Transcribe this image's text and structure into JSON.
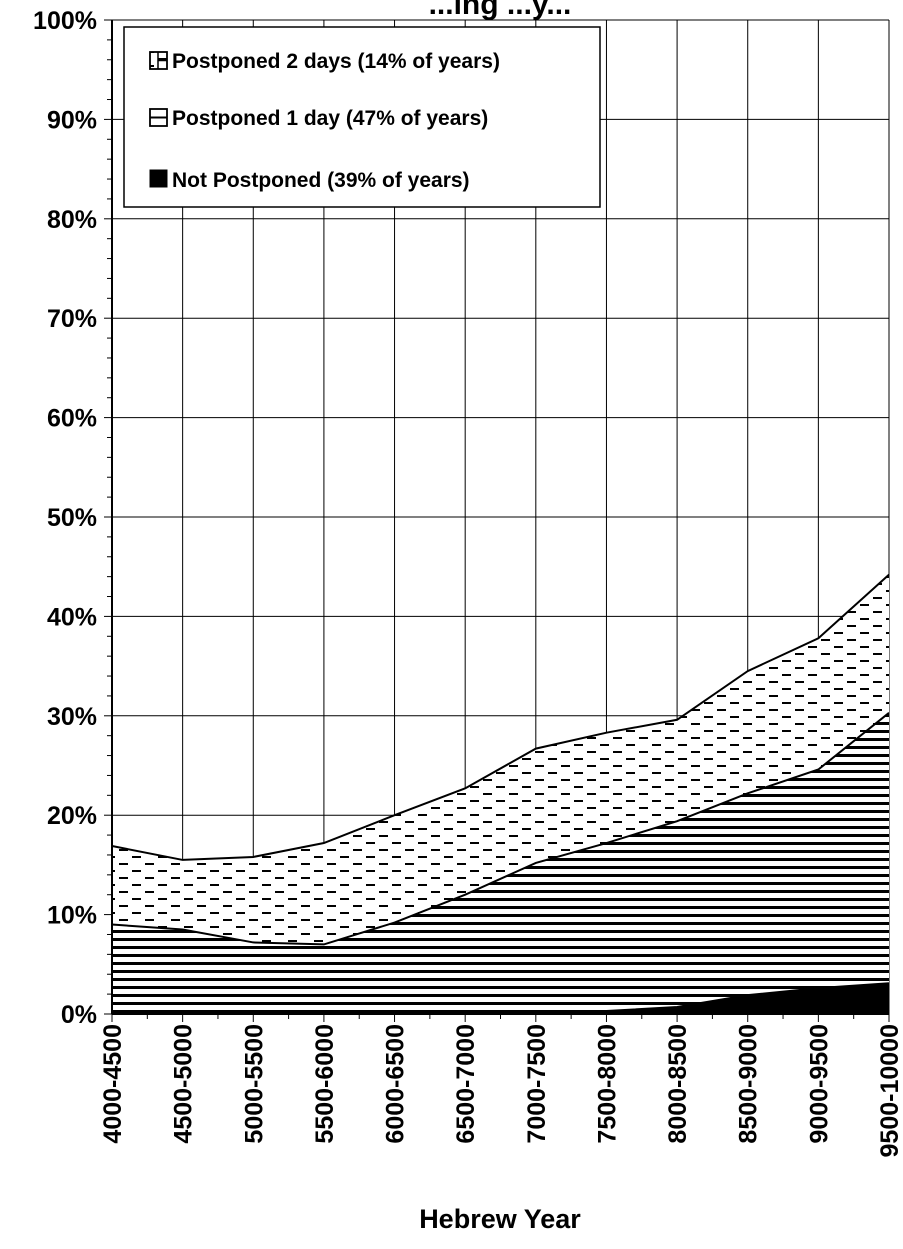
{
  "chart_data": {
    "type": "area",
    "stacked": true,
    "title": "...ing ...y...",
    "xlabel": "Hebrew Year",
    "ylabel": "",
    "ylim": [
      0,
      100
    ],
    "y_ticks": [
      "0%",
      "10%",
      "20%",
      "30%",
      "40%",
      "50%",
      "60%",
      "70%",
      "80%",
      "90%",
      "100%"
    ],
    "categories": [
      "4000-4500",
      "4500-5000",
      "5000-5500",
      "5500-6000",
      "6000-6500",
      "6500-7000",
      "7000-7500",
      "7500-8000",
      "8000-8500",
      "8500-9000",
      "9000-9500",
      "9500-10000"
    ],
    "grid": true,
    "legend_position": "top-left",
    "series": [
      {
        "name": "Not Postponed (39% of years)",
        "pattern": "solid",
        "color": "#000000",
        "values": [
          0,
          0,
          0,
          0,
          0,
          0,
          0,
          0.3,
          0.7,
          1.9,
          2.6,
          3.1
        ]
      },
      {
        "name": "Postponed 1 day (47% of years)",
        "pattern": "horizontal-lines",
        "color": "#000000",
        "values": [
          9.0,
          8.5,
          7.2,
          7.0,
          9.2,
          12.0,
          15.2,
          16.9,
          18.7,
          20.3,
          22.0,
          27.2
        ]
      },
      {
        "name": "Postponed 2 days (14% of years)",
        "pattern": "dashes",
        "color": "#000000",
        "values": [
          7.9,
          7.0,
          8.6,
          10.2,
          10.8,
          10.7,
          11.5,
          11.1,
          10.2,
          12.3,
          13.2,
          13.9
        ]
      }
    ]
  }
}
